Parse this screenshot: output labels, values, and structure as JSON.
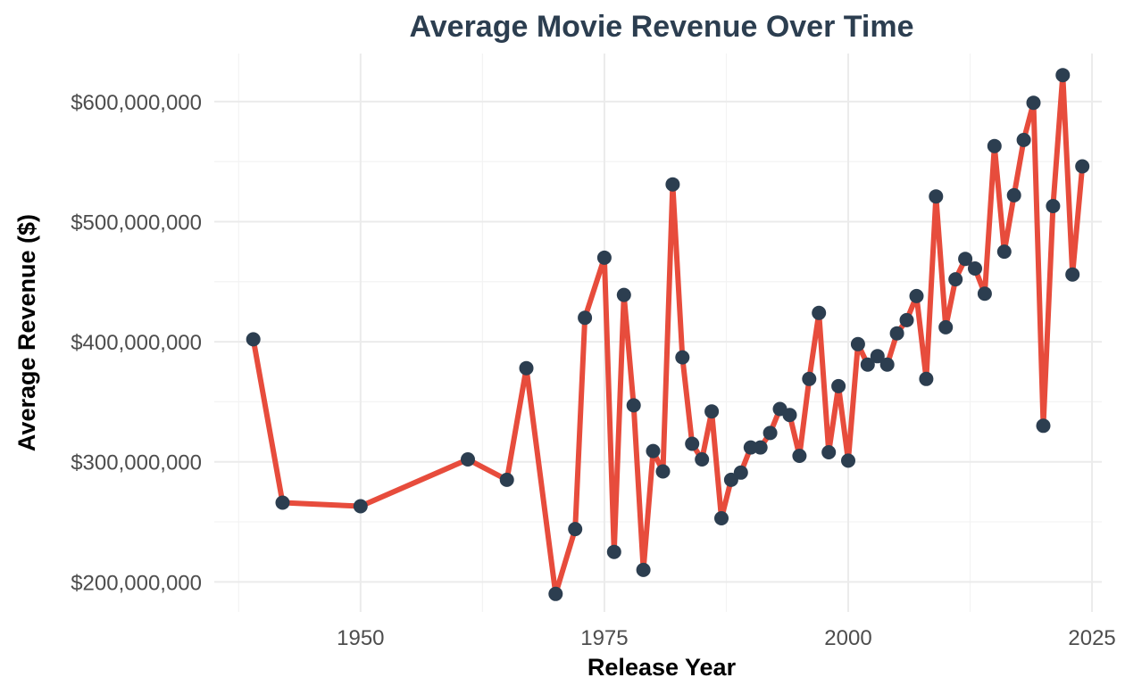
{
  "chart_data": {
    "type": "line",
    "title": "Average Movie Revenue Over Time",
    "xlabel": "Release Year",
    "ylabel": "Average Revenue ($)",
    "xlim": [
      1935,
      2026
    ],
    "ylim": [
      175000000,
      640000000
    ],
    "x_ticks": [
      1950,
      1975,
      2000,
      2025
    ],
    "x_tick_labels": [
      "1950",
      "1975",
      "2000",
      "2025"
    ],
    "y_ticks": [
      200000000,
      300000000,
      400000000,
      500000000,
      600000000
    ],
    "y_tick_labels": [
      "$200,000,000",
      "$300,000,000",
      "$400,000,000",
      "$500,000,000",
      "$600,000,000"
    ],
    "grid": true,
    "line_color": "#e74c3c",
    "point_color": "#2c3e50",
    "series": [
      {
        "x": [
          1939,
          1942,
          1950,
          1961,
          1965,
          1967,
          1970,
          1972,
          1973,
          1975,
          1976,
          1977,
          1978,
          1979,
          1980,
          1981,
          1982,
          1983,
          1984,
          1985,
          1986,
          1987,
          1988,
          1989,
          1990,
          1991,
          1992,
          1993,
          1994,
          1995,
          1996,
          1997,
          1998,
          1999,
          2000,
          2001,
          2002,
          2003,
          2004,
          2005,
          2006,
          2007,
          2008,
          2009,
          2010,
          2011,
          2012,
          2013,
          2014,
          2015,
          2016,
          2017,
          2018,
          2019,
          2020,
          2021,
          2022,
          2023,
          2024
        ],
        "values": [
          402000000,
          266000000,
          263000000,
          302000000,
          285000000,
          378000000,
          190000000,
          244000000,
          420000000,
          470000000,
          225000000,
          439000000,
          347000000,
          210000000,
          309000000,
          292000000,
          531000000,
          387000000,
          315000000,
          302000000,
          342000000,
          253000000,
          285000000,
          291000000,
          312000000,
          312000000,
          324000000,
          344000000,
          339000000,
          305000000,
          369000000,
          424000000,
          308000000,
          363000000,
          301000000,
          398000000,
          381000000,
          388000000,
          381000000,
          407000000,
          418000000,
          438000000,
          369000000,
          521000000,
          412000000,
          452000000,
          469000000,
          461000000,
          440000000,
          563000000,
          475000000,
          522000000,
          568000000,
          599000000,
          330000000,
          513000000,
          622000000,
          456000000,
          546000000
        ]
      }
    ]
  }
}
